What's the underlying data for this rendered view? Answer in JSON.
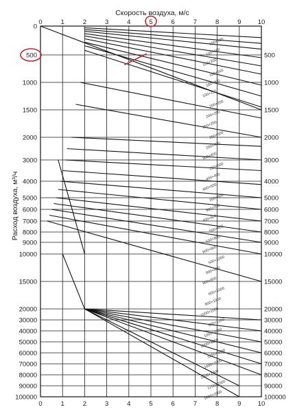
{
  "chart_data": {
    "type": "line",
    "xlabel": "Скорость воздуха, м/с",
    "ylabel": "Расход воздуха, м³/ч",
    "xlim": [
      0,
      10
    ],
    "ylim": [
      0,
      100000
    ],
    "x_ticks": [
      "0",
      "1",
      "2",
      "3",
      "4",
      "5",
      "6",
      "7",
      "8",
      "9",
      "10"
    ],
    "y_tick_rows": [
      "0",
      "500",
      "1000",
      "1500",
      "2000",
      "3000",
      "4000",
      "5000",
      "6000",
      "7000",
      "8000",
      "9000",
      "10000",
      "15000",
      "20000",
      "30000",
      "40000",
      "50000",
      "60000",
      "70000",
      "80000",
      "90000",
      "100000"
    ],
    "y_left_labels": [
      "0",
      "500",
      "1000",
      "1500",
      "2000",
      "3000",
      "4000",
      "5000",
      "6000",
      "7000",
      "8000",
      "9000",
      "10000",
      "15000",
      "20000",
      "30000",
      "40000",
      "50000",
      "60000",
      "70000",
      "80000",
      "90000",
      "100000"
    ],
    "y_right_labels": [
      "",
      "500",
      "1000",
      "1500",
      "2000",
      "3000",
      "4000",
      "5000",
      "6000",
      "7000",
      "8000",
      "9000",
      "10000",
      "15000",
      "20000",
      "30000",
      "40000",
      "50000",
      "60000",
      "70000",
      "80000",
      "90000",
      "100000"
    ],
    "grid": true,
    "highlight": {
      "x_value": 5,
      "y_value": 500,
      "color": "#c0252b"
    },
    "series": [
      {
        "x": [
          0,
          10
        ],
        "y": [
          0,
          1500
        ]
      },
      {
        "x": [
          2,
          10
        ],
        "y": [
          30,
          200
        ]
      },
      {
        "x": [
          2,
          10
        ],
        "y": [
          60,
          300
        ]
      },
      {
        "x": [
          2,
          10
        ],
        "y": [
          90,
          400
        ]
      },
      {
        "x": [
          2,
          10
        ],
        "y": [
          130,
          550
        ]
      },
      {
        "x": [
          2,
          10
        ],
        "y": [
          170,
          700
        ]
      },
      {
        "x": [
          2,
          10
        ],
        "y": [
          220,
          850
        ]
      },
      {
        "x": [
          2,
          10
        ],
        "y": [
          280,
          1050
        ]
      },
      {
        "x": [
          2,
          10
        ],
        "y": [
          340,
          1250
        ]
      },
      {
        "x": [
          2,
          10
        ],
        "y": [
          420,
          1450
        ]
      },
      {
        "x": [
          1.8,
          10
        ],
        "y": [
          1000,
          1650
        ]
      },
      {
        "x": [
          1.6,
          10
        ],
        "y": [
          1400,
          2000
        ]
      },
      {
        "x": [
          1.4,
          10
        ],
        "y": [
          2000,
          2400
        ]
      },
      {
        "x": [
          1.2,
          10
        ],
        "y": [
          2500,
          3000
        ]
      },
      {
        "x": [
          1.1,
          10
        ],
        "y": [
          3000,
          3500
        ]
      },
      {
        "x": [
          1.0,
          10
        ],
        "y": [
          3500,
          4200
        ]
      },
      {
        "x": [
          0.9,
          10
        ],
        "y": [
          4000,
          5000
        ]
      },
      {
        "x": [
          0.8,
          10
        ],
        "y": [
          4500,
          6000
        ]
      },
      {
        "x": [
          0.7,
          10
        ],
        "y": [
          5000,
          7000
        ]
      },
      {
        "x": [
          0.6,
          10
        ],
        "y": [
          5500,
          8000
        ]
      },
      {
        "x": [
          0.5,
          10
        ],
        "y": [
          6000,
          9000
        ]
      },
      {
        "x": [
          0.4,
          10
        ],
        "y": [
          6500,
          10000
        ]
      },
      {
        "x": [
          0.3,
          10
        ],
        "y": [
          7000,
          15000
        ]
      },
      {
        "x": [
          2,
          10
        ],
        "y": [
          20000,
          30000
        ]
      },
      {
        "x": [
          2,
          10
        ],
        "y": [
          20000,
          40000
        ]
      },
      {
        "x": [
          2,
          10
        ],
        "y": [
          20000,
          50000
        ]
      },
      {
        "x": [
          2,
          10
        ],
        "y": [
          20000,
          60000
        ]
      },
      {
        "x": [
          2,
          10
        ],
        "y": [
          20000,
          70000
        ]
      },
      {
        "x": [
          2,
          10
        ],
        "y": [
          20000,
          80000
        ]
      },
      {
        "x": [
          2,
          9
        ],
        "y": [
          20000,
          90000
        ]
      },
      {
        "x": [
          2,
          9
        ],
        "y": [
          20000,
          100000
        ]
      },
      {
        "x": [
          1,
          2
        ],
        "y": [
          10000,
          20000
        ]
      },
      {
        "x": [
          0.8,
          2
        ],
        "y": [
          3000,
          10000
        ]
      }
    ],
    "annotations": [
      "100×100",
      "100×160",
      "100×200",
      "160×160",
      "160×200",
      "100×250",
      "200×200",
      "200×250",
      "250×250",
      "250×300",
      "250×400",
      "300×400",
      "250×500",
      "400×400",
      "400×500",
      "300×600",
      "500×500",
      "400×600",
      "500×600",
      "500×800",
      "600×600",
      "500×1000",
      "600×800",
      "800×800",
      "600×1000",
      "800×1000",
      "1000×1000",
      "800×1200",
      "1000×1250",
      "1000×1600",
      "1250×1600",
      "1000×2000",
      "1600×1600",
      "1250×2000",
      "1600×2000"
    ]
  }
}
